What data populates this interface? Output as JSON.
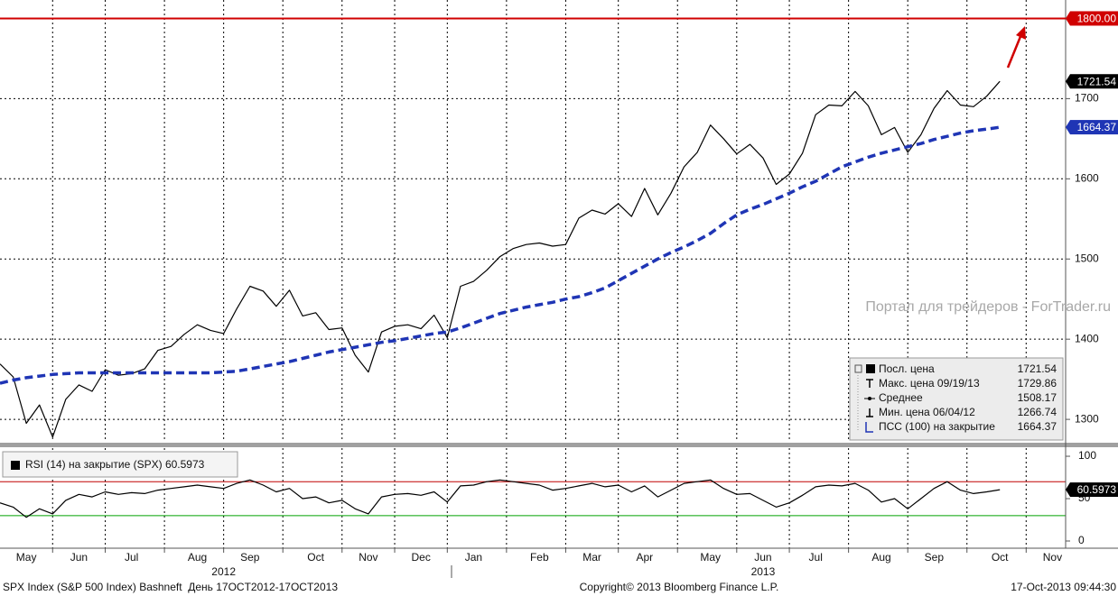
{
  "chart_data": [
    {
      "type": "line",
      "categories": [
        null,
        null,
        "May",
        null,
        null,
        null,
        "Jun",
        null,
        null,
        null,
        "Jul",
        null,
        null,
        null,
        null,
        "Aug",
        null,
        null,
        null,
        "Sep",
        null,
        null,
        null,
        null,
        "Oct",
        null,
        null,
        null,
        "Nov",
        null,
        null,
        null,
        "Dec",
        null,
        null,
        null,
        "Jan",
        null,
        null,
        null,
        null,
        "Feb",
        null,
        null,
        null,
        "Mar",
        null,
        null,
        null,
        "Apr",
        null,
        null,
        null,
        null,
        "May",
        null,
        null,
        null,
        "Jun",
        null,
        null,
        null,
        "Jul",
        null,
        null,
        null,
        null,
        "Aug",
        null,
        null,
        null,
        "Sep",
        null,
        null,
        null,
        null,
        "Oct",
        null,
        null,
        null,
        "Nov",
        null
      ],
      "year_labels": [
        null,
        null,
        null,
        null,
        null,
        null,
        null,
        null,
        null,
        null,
        null,
        null,
        null,
        null,
        null,
        null,
        null,
        "2012",
        null,
        null,
        null,
        null,
        null,
        null,
        null,
        null,
        null,
        null,
        null,
        null,
        null,
        null,
        null,
        null,
        null,
        null,
        null,
        null,
        null,
        null,
        null,
        null,
        null,
        null,
        null,
        null,
        null,
        null,
        null,
        null,
        null,
        null,
        null,
        null,
        null,
        null,
        null,
        null,
        "2013",
        null,
        null,
        null,
        null,
        null,
        null,
        null,
        null,
        null,
        null,
        null,
        null,
        null,
        null,
        null,
        null,
        null,
        null,
        null,
        null,
        null,
        null,
        null
      ],
      "series": [
        {
          "color": "#000000",
          "values": [
            1369,
            1353,
            1295,
            1318,
            1278,
            1325,
            1343,
            1335,
            1362,
            1355,
            1357,
            1363,
            1386,
            1391,
            1406,
            1418,
            1411,
            1407,
            1438,
            1466,
            1460,
            1441,
            1461,
            1429,
            1433,
            1412,
            1414,
            1380,
            1359,
            1409,
            1416,
            1418,
            1413,
            1430,
            1402,
            1466,
            1472,
            1486,
            1503,
            1513,
            1518,
            1520,
            1516,
            1518,
            1551,
            1561,
            1556,
            1569,
            1553,
            1588,
            1555,
            1582,
            1615,
            1633,
            1667,
            1650,
            1631,
            1643,
            1626,
            1593,
            1606,
            1632,
            1680,
            1692,
            1691,
            1709,
            1691,
            1655,
            1664,
            1633,
            1655,
            1688,
            1710,
            1692,
            1690,
            1703,
            1721.54,
            null,
            null,
            null,
            null,
            null
          ]
        },
        {
          "color": "#1f35b5",
          "dashed": true,
          "values": [
            1345,
            1349,
            1352,
            1354,
            1356,
            1357,
            1358,
            1358,
            1358,
            1358,
            1358,
            1358,
            1358,
            1358,
            1358,
            1358,
            1358,
            1359,
            1360,
            1363,
            1366,
            1369,
            1372,
            1376,
            1380,
            1384,
            1387,
            1390,
            1393,
            1396,
            1398,
            1401,
            1404,
            1407,
            1409,
            1414,
            1420,
            1426,
            1432,
            1436,
            1440,
            1443,
            1446,
            1450,
            1453,
            1458,
            1464,
            1473,
            1482,
            1491,
            1500,
            1508,
            1515,
            1523,
            1532,
            1544,
            1555,
            1562,
            1568,
            1575,
            1582,
            1590,
            1597,
            1606,
            1615,
            1621,
            1627,
            1632,
            1636,
            1640,
            1644,
            1649,
            1653,
            1657,
            1660,
            1662,
            1664.37,
            null,
            null,
            null,
            null,
            null
          ]
        }
      ],
      "hline": {
        "value": 1800,
        "label": "1800.00",
        "color": "#d00000"
      },
      "ylim": [
        1272,
        1823
      ],
      "yticks": [
        1300,
        1400,
        1500,
        1600,
        1700
      ],
      "grid": true,
      "stats": [
        {
          "label": "Посл. цена",
          "value": 1721.54
        },
        {
          "label": "Макс. цена 09/19/13",
          "value": 1729.86
        },
        {
          "label": "Среднее",
          "value": 1508.17
        },
        {
          "label": "Мин. цена 06/04/12",
          "value": 1266.74
        },
        {
          "label": "ПСС (100) на закрытие",
          "value": 1664.37
        }
      ],
      "watermark": "Портал для трейдеров - ForTrader.ru"
    },
    {
      "type": "line",
      "series": [
        {
          "name": "RSI (14) на закрытие (SPX)",
          "color": "#000000",
          "values": [
            45,
            40,
            28,
            38,
            32,
            48,
            55,
            52,
            58,
            55,
            57,
            56,
            60,
            62,
            64,
            66,
            64,
            62,
            68,
            72,
            66,
            58,
            62,
            50,
            52,
            45,
            48,
            38,
            32,
            52,
            55,
            56,
            54,
            58,
            46,
            65,
            66,
            70,
            72,
            70,
            68,
            66,
            60,
            62,
            65,
            68,
            64,
            66,
            58,
            65,
            52,
            60,
            68,
            70,
            72,
            62,
            55,
            56,
            48,
            40,
            45,
            54,
            64,
            66,
            65,
            68,
            60,
            46,
            50,
            38,
            50,
            62,
            70,
            60,
            56,
            58,
            60.5973,
            null,
            null,
            null,
            null,
            null
          ]
        }
      ],
      "bands": [
        {
          "value": 70,
          "color": "#c00000"
        },
        {
          "value": 30,
          "color": "#00a000"
        }
      ],
      "ylim": [
        -8.5,
        109.6
      ],
      "yticks": [
        0,
        50,
        100
      ],
      "grid": false
    }
  ],
  "footer": {
    "left": "SPX Index (S&P 500 Index) Bashneft  День 17OCT2012-17OCT2013",
    "center": "Copyright© 2013 Bloomberg Finance L.P.",
    "right": "17-Oct-2013 09:44:30"
  }
}
